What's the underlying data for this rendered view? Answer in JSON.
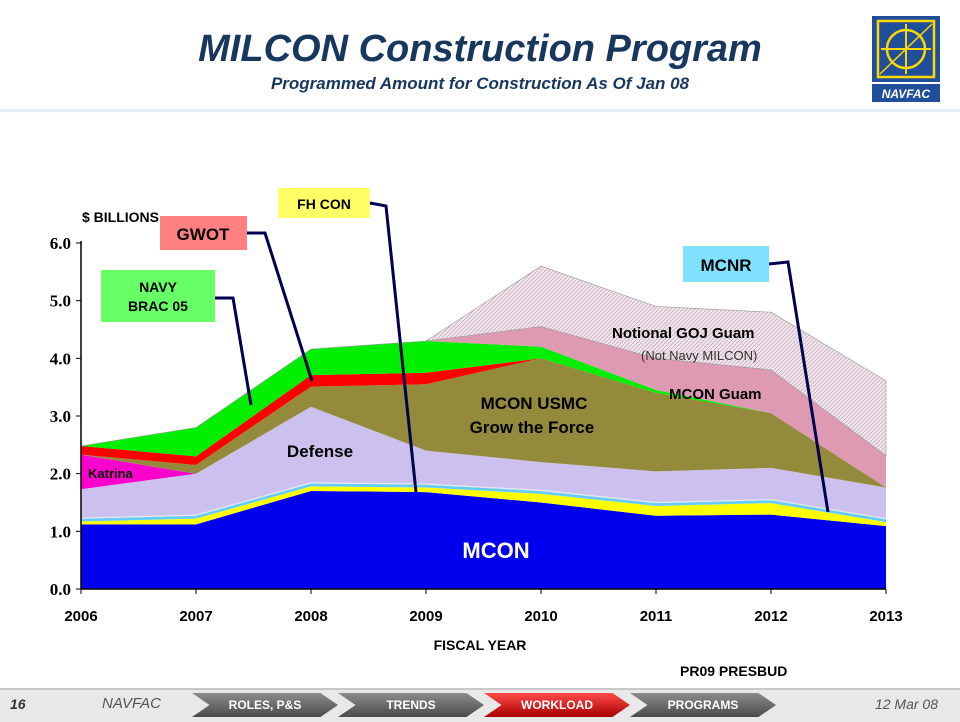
{
  "header": {
    "title": "MILCON Construction Program",
    "subtitle": "Programmed Amount for Construction As Of Jan 08",
    "logo_text": "NAVFAC"
  },
  "footer": {
    "page_number": "16",
    "org": "NAVFAC",
    "date": "12 Mar 08",
    "tabs": [
      "ROLES, P&S",
      "TRENDS",
      "WORKLOAD",
      "PROGRAMS"
    ],
    "active_tab": "WORKLOAD"
  },
  "notes": {
    "budget": "PR09 PRESBUD"
  },
  "colors": {
    "title": "#17375e",
    "tab_active": "#cc0000",
    "tab_inactive": "#666666"
  },
  "chart_data": {
    "type": "area",
    "stacked": true,
    "title": "",
    "xlabel": "FISCAL YEAR",
    "ylabel": "$ BILLIONS",
    "x": [
      "2006",
      "2007",
      "2008",
      "2009",
      "2010",
      "2011",
      "2012",
      "2013"
    ],
    "ylim": [
      0,
      6
    ],
    "yticks": [
      "0.0",
      "1.0",
      "2.0",
      "3.0",
      "4.0",
      "5.0",
      "6.0"
    ],
    "grid": false,
    "series": [
      {
        "name": "MCON",
        "color": "#0000ee",
        "values": [
          1.12,
          1.12,
          1.7,
          1.68,
          1.5,
          1.27,
          1.29,
          1.09
        ]
      },
      {
        "name": "",
        "color": "#ffff00",
        "values": [
          0.05,
          0.1,
          0.08,
          0.08,
          0.15,
          0.17,
          0.2,
          0.07
        ]
      },
      {
        "name": "MCNR",
        "color": "#66ccff",
        "values": [
          0.05,
          0.05,
          0.05,
          0.05,
          0.05,
          0.05,
          0.05,
          0.05
        ]
      },
      {
        "name": "FH CON",
        "color": "#e6e6e6",
        "values": [
          0.02,
          0.02,
          0.02,
          0.02,
          0.02,
          0.02,
          0.02,
          0.02
        ]
      },
      {
        "name": "Defense",
        "color": "#ccc0ee",
        "values": [
          0.49,
          0.71,
          1.31,
          0.57,
          0.48,
          0.53,
          0.54,
          0.53
        ]
      },
      {
        "name": "Katrina",
        "color": "#ff00cc",
        "values": [
          0.6,
          0.0,
          0.0,
          0.0,
          0.0,
          0.0,
          0.0,
          0.0
        ]
      },
      {
        "name": "MCON USMC Grow the Force",
        "color": "#948a3c",
        "values": [
          0.0,
          0.15,
          0.35,
          1.15,
          1.8,
          1.36,
          0.95,
          0.0
        ]
      },
      {
        "name": "GWOT",
        "color": "#ff0000",
        "values": [
          0.15,
          0.15,
          0.2,
          0.2,
          0.0,
          0.0,
          0.0,
          0.0
        ]
      },
      {
        "name": "NAVY BRAC 05",
        "color": "#00ee00",
        "values": [
          0.0,
          0.5,
          0.45,
          0.55,
          0.2,
          0.05,
          0.0,
          0.0
        ]
      },
      {
        "name": "MCON Guam",
        "color": "#dd9ab2",
        "values": [
          0.0,
          0.0,
          0.0,
          0.0,
          0.35,
          0.55,
          0.75,
          0.55
        ]
      },
      {
        "name": "Notional GOJ Guam",
        "color": "#f2dce6",
        "values": [
          0.0,
          0.0,
          0.0,
          0.0,
          1.05,
          0.9,
          1.0,
          1.3
        ]
      }
    ],
    "labels": {
      "mcon": "MCON",
      "defense": "Defense",
      "katrina": "Katrina",
      "usmc_line1": "MCON USMC",
      "usmc_line2": "Grow the Force",
      "guam": "MCON Guam",
      "goj": "Notional GOJ Guam",
      "goj_note": "(Not Navy MILCON)"
    },
    "callouts": {
      "fh_con": "FH CON",
      "gwot": "GWOT",
      "brac_line1": "NAVY",
      "brac_line2": "BRAC 05",
      "mcnr": "MCNR"
    }
  }
}
